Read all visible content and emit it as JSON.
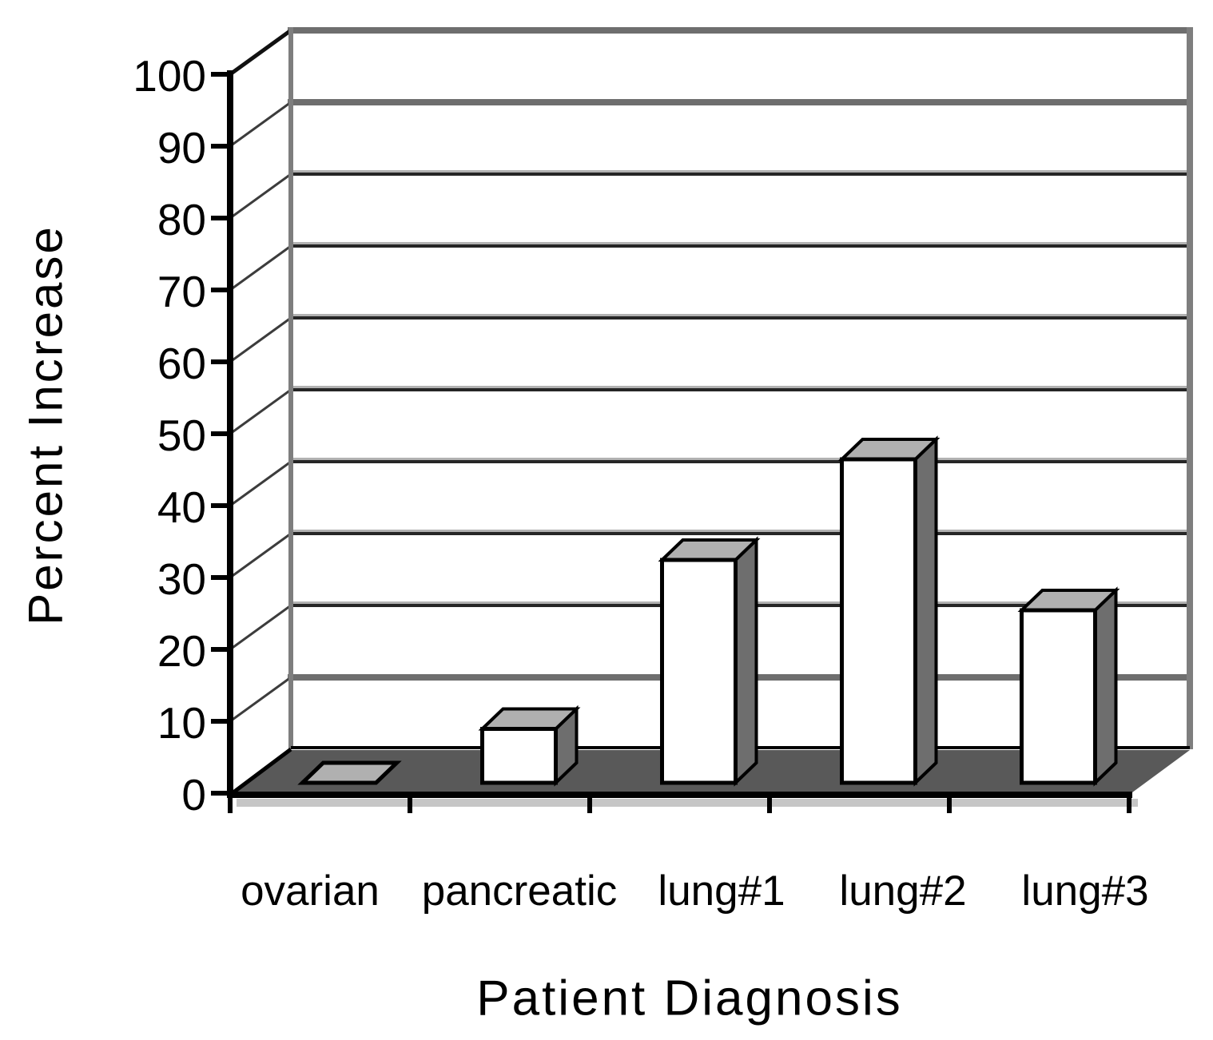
{
  "chart_data": {
    "type": "bar",
    "projection": "3d-column",
    "title": "",
    "xlabel": "Patient Diagnosis",
    "ylabel": "Percent Increase",
    "categories": [
      "ovarian",
      "pancreatic",
      "lung#1",
      "lung#2",
      "lung#3"
    ],
    "values": [
      0.5,
      7.5,
      31,
      45,
      24
    ],
    "ylim": [
      0,
      100
    ],
    "ytick_step": 10,
    "yticks": [
      0,
      10,
      20,
      30,
      40,
      50,
      60,
      70,
      80,
      90,
      100
    ],
    "grid": true,
    "legend": false,
    "colors": {
      "bar_front": "#ffffff",
      "bar_top": "#b0b0b0",
      "bar_side": "#6e6e6e",
      "floor": "#595959",
      "wall_edge": "#7e7e7e",
      "gridline_dark": "#262626",
      "gridline_light": "#b2b2b2",
      "gridline_gray": "#6e6e6e",
      "axis": "#000000",
      "axis_shadow": "#c6c6c6",
      "background": "#ffffff",
      "text": "#000000"
    }
  }
}
